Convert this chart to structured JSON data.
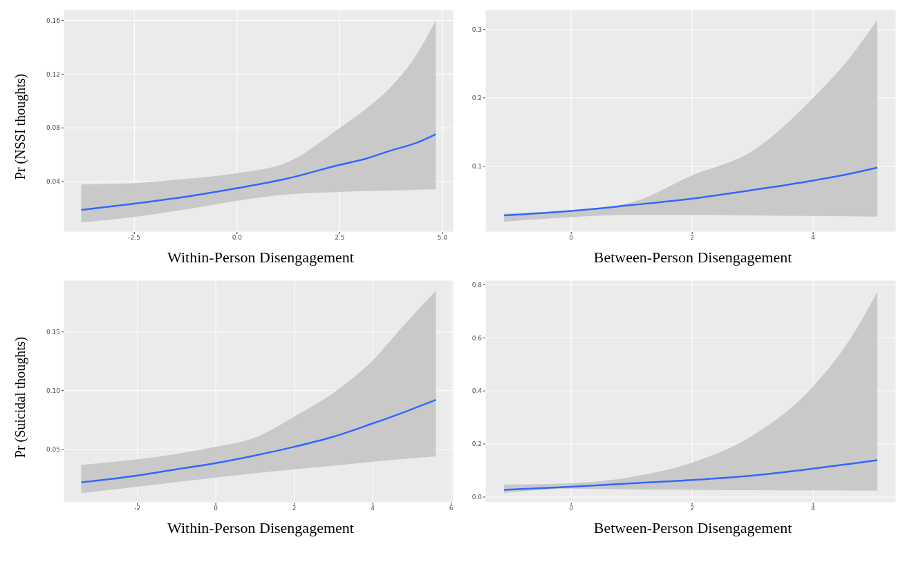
{
  "chart_data": [
    {
      "type": "line",
      "ylabel": "Pr (NSSI thoughts)",
      "xlabel": "Within-Person Disengagement",
      "grid": true,
      "xlim": [
        -4.22,
        5.27
      ],
      "ylim": [
        0.0025,
        0.168
      ],
      "xticks": [
        -2.5,
        {
          "value": 0,
          "label": "0.0"
        },
        2.5,
        {
          "value": 5,
          "label": "5.0"
        }
      ],
      "yticks": [
        0.04,
        0.08,
        0.12,
        0.16
      ],
      "series": [
        {
          "color": "#3366ff",
          "x": [
            -3.79,
            -2.5,
            -1.25,
            0,
            1.25,
            2.5,
            3.13,
            3.75,
            4.38,
            4.84
          ],
          "values": [
            0.0189,
            0.0236,
            0.0287,
            0.0351,
            0.0425,
            0.0525,
            0.057,
            0.0632,
            0.069,
            0.0753
          ],
          "lower": [
            0.0096,
            0.0137,
            0.0193,
            0.0258,
            0.0305,
            0.0323,
            0.033,
            0.0333,
            0.034,
            0.0342
          ],
          "upper": [
            0.038,
            0.0389,
            0.042,
            0.0463,
            0.0547,
            0.08,
            0.094,
            0.1107,
            0.135,
            0.16
          ]
        }
      ]
    },
    {
      "type": "line",
      "xlabel": "Between-Person Disengagement",
      "grid": true,
      "xlim": [
        -1.42,
        5.37
      ],
      "ylim": [
        0.004,
        0.329
      ],
      "xticks": [
        0,
        2,
        4
      ],
      "yticks": [
        0.1,
        0.2,
        0.3
      ],
      "series": [
        {
          "color": "#3366ff",
          "x": [
            -1.11,
            0,
            1,
            2,
            3,
            4,
            4.6,
            5.06
          ],
          "values": [
            0.0283,
            0.0347,
            0.0434,
            0.0528,
            0.0653,
            0.0792,
            0.089,
            0.0981
          ],
          "lower": [
            0.0189,
            0.0257,
            0.029,
            0.029,
            0.0283,
            0.0275,
            0.027,
            0.0264
          ],
          "upper": [
            0.0313,
            0.0358,
            0.0472,
            0.0868,
            0.1226,
            0.2,
            0.258,
            0.314
          ]
        }
      ]
    },
    {
      "type": "line",
      "ylabel": "Pr (Suicidal thoughts)",
      "xlabel": "Within-Person Disengagement",
      "grid": true,
      "xlim": [
        -3.88,
        6.06
      ],
      "ylim": [
        0.0045,
        0.194
      ],
      "xticks": [
        -2,
        0,
        2,
        4,
        6
      ],
      "yticks": [
        0.05,
        {
          "value": 0.1,
          "label": "0.10"
        },
        0.15
      ],
      "series": [
        {
          "color": "#3366ff",
          "x": [
            -3.43,
            -2,
            -1,
            0,
            1,
            2,
            3,
            4,
            4.83,
            5.61
          ],
          "values": [
            0.0218,
            0.0276,
            0.0329,
            0.0382,
            0.0447,
            0.0521,
            0.0607,
            0.072,
            0.082,
            0.0921
          ],
          "lower": [
            0.0126,
            0.018,
            0.022,
            0.0259,
            0.0295,
            0.0329,
            0.036,
            0.0393,
            0.0418,
            0.044
          ],
          "upper": [
            0.0367,
            0.0414,
            0.046,
            0.0521,
            0.06,
            0.0778,
            0.098,
            0.1258,
            0.157,
            0.185
          ]
        }
      ]
    },
    {
      "type": "line",
      "xlabel": "Between-Person Disengagement",
      "grid": true,
      "xlim": [
        -1.42,
        5.37
      ],
      "ylim": [
        -0.021,
        0.817
      ],
      "xticks": [
        0,
        2,
        4
      ],
      "yticks": [
        {
          "value": 0,
          "label": "0.0"
        },
        0.2,
        0.4,
        0.6,
        0.8
      ],
      "series": [
        {
          "color": "#3366ff",
          "x": [
            -1.11,
            0,
            1,
            2,
            3,
            4,
            4.6,
            5.06
          ],
          "values": [
            0.0273,
            0.039,
            0.052,
            0.064,
            0.081,
            0.107,
            0.125,
            0.139
          ],
          "lower": [
            0.0156,
            0.032,
            0.029,
            0.027,
            0.026,
            0.025,
            0.0245,
            0.024
          ],
          "upper": [
            0.047,
            0.052,
            0.076,
            0.13,
            0.232,
            0.417,
            0.592,
            0.773
          ]
        }
      ]
    }
  ]
}
